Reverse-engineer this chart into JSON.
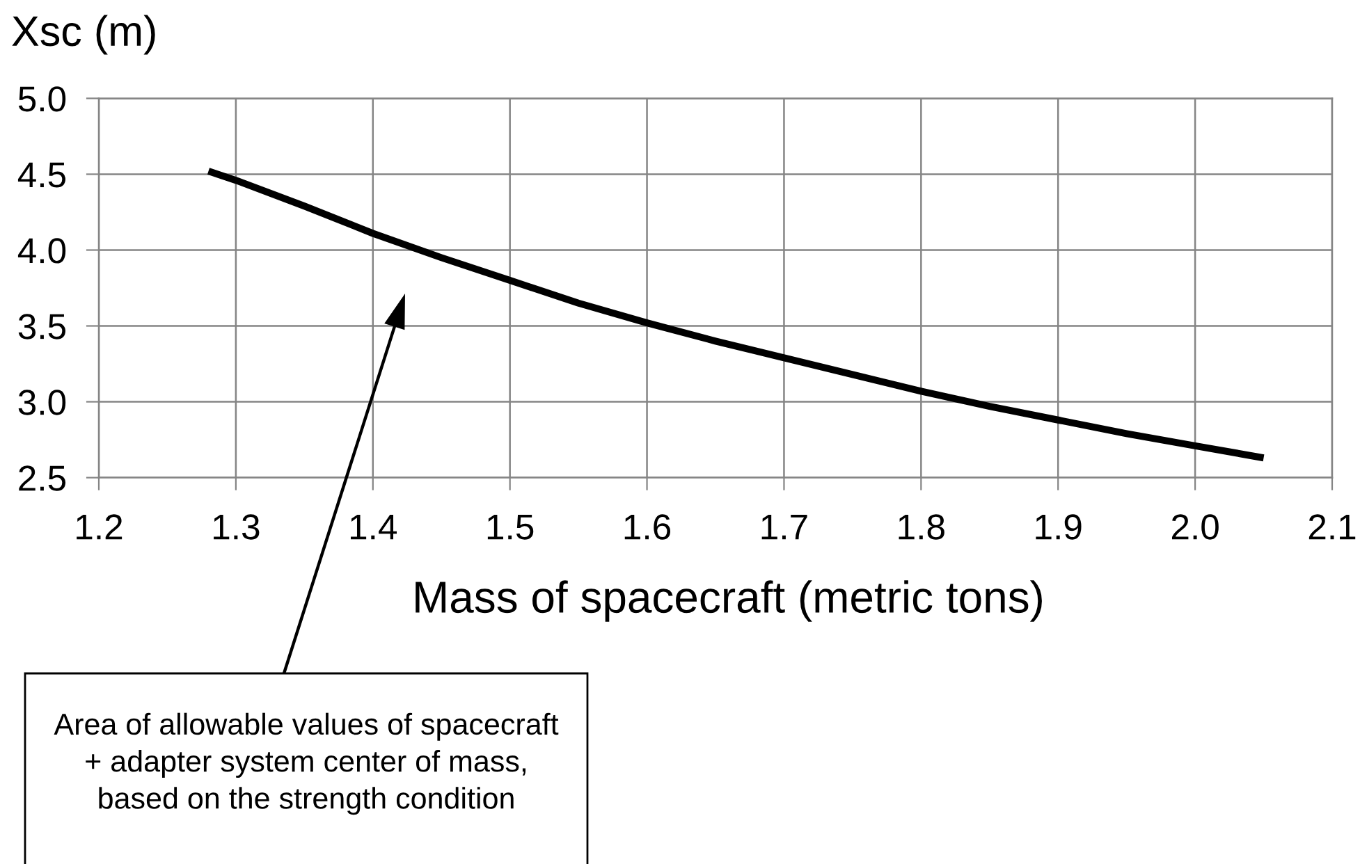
{
  "chart_data": {
    "type": "line",
    "xlabel": "Mass of spacecraft (metric tons)",
    "ylabel": "Xsc (m)",
    "x": [
      1.28,
      1.3,
      1.35,
      1.4,
      1.45,
      1.5,
      1.55,
      1.6,
      1.65,
      1.7,
      1.75,
      1.8,
      1.85,
      1.9,
      1.95,
      2.0,
      2.05
    ],
    "values": [
      4.52,
      4.46,
      4.29,
      4.11,
      3.95,
      3.8,
      3.65,
      3.52,
      3.4,
      3.29,
      3.18,
      3.07,
      2.97,
      2.88,
      2.79,
      2.71,
      2.63
    ],
    "color": "#000000",
    "line_style": "solid",
    "xlim": [
      1.2,
      2.1
    ],
    "ylim": [
      2.5,
      5.0
    ],
    "xticks": [
      1.2,
      1.3,
      1.4,
      1.5,
      1.6,
      1.7,
      1.8,
      1.9,
      {
        "value": 2.0,
        "label": "2.0"
      },
      2.1
    ],
    "yticks": [
      2.5,
      {
        "value": 3.0,
        "label": "3.0"
      },
      3.5,
      {
        "value": 4.0,
        "label": "4.0"
      },
      4.5,
      {
        "value": 5.0,
        "label": "5.0"
      }
    ],
    "grid": true,
    "annotations": [
      "Area of allowable values of spacecraft\n+ adapter system center of mass,\nbased on the strength condition"
    ]
  }
}
